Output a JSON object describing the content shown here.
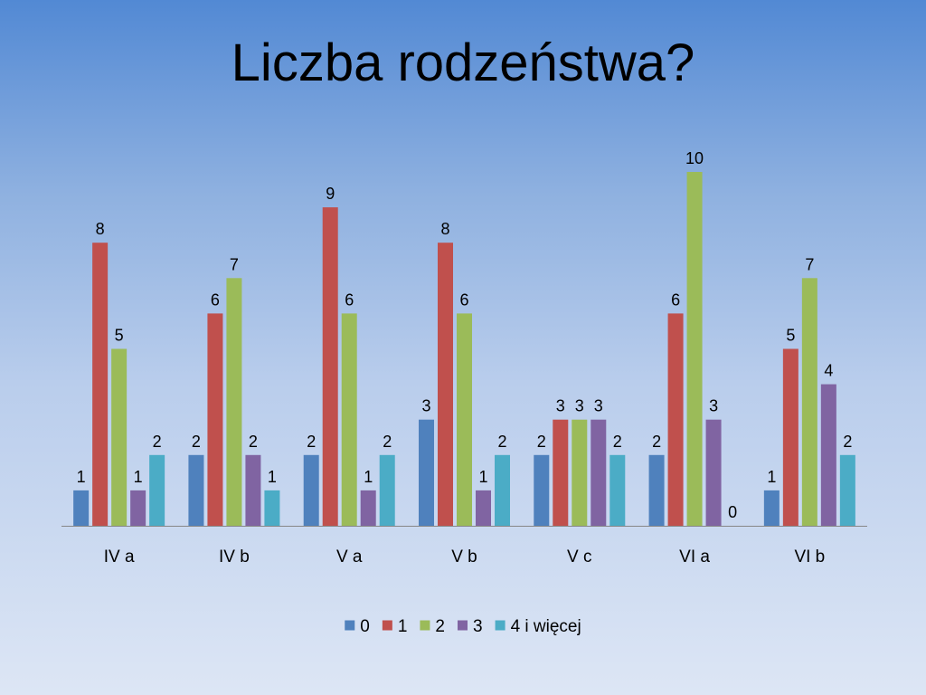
{
  "slide": {
    "title": "Liczba rodzeństwa?"
  },
  "chart_data": {
    "type": "bar",
    "title": "Liczba rodzeństwa?",
    "categories": [
      "IV a",
      "IV b",
      "V a",
      "V b",
      "V c",
      "VI a",
      "VI b"
    ],
    "series": [
      {
        "name": "0",
        "color": "#4f81bd",
        "values": [
          1,
          2,
          2,
          3,
          2,
          2,
          1
        ]
      },
      {
        "name": "1",
        "color": "#c0504d",
        "values": [
          8,
          6,
          9,
          8,
          3,
          6,
          5
        ]
      },
      {
        "name": "2",
        "color": "#9bbb59",
        "values": [
          5,
          7,
          6,
          6,
          3,
          10,
          7
        ]
      },
      {
        "name": "3",
        "color": "#8064a2",
        "values": [
          1,
          2,
          1,
          1,
          3,
          3,
          4
        ]
      },
      {
        "name": "4 i więcej",
        "color": "#4bacc6",
        "values": [
          2,
          1,
          2,
          2,
          2,
          0,
          2
        ]
      }
    ],
    "ylim": [
      0,
      10
    ],
    "grid": false,
    "data_labels": true,
    "legend_position": "bottom",
    "xlabel": "",
    "ylabel": ""
  }
}
